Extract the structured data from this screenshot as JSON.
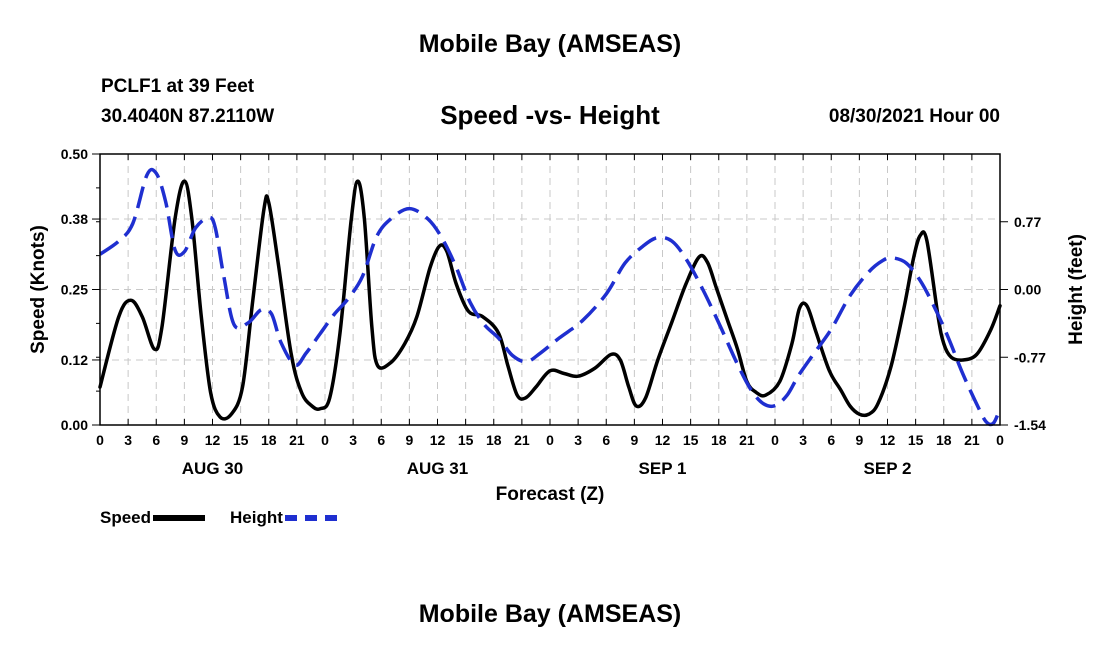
{
  "header": {
    "title": "Mobile Bay (AMSEAS)",
    "station": "PCLF1 at 39 Feet",
    "coords": "30.4040N  87.2110W",
    "subtitle": "Speed -vs- Height",
    "timestamp": "08/30/2021 Hour 00"
  },
  "footer": {
    "title": "Mobile Bay (AMSEAS)"
  },
  "colors": {
    "speed": "#000000",
    "height": "#1f2fd0",
    "grid": "#c8c8c8"
  },
  "chart_data": {
    "type": "line",
    "xlabel": "Forecast (Z)",
    "ylabel_left": "Speed (Knots)",
    "ylabel_right": "Height (feet)",
    "x_range_hours": [
      0,
      96
    ],
    "x_tick_step_hours": 3,
    "x_tick_labels": [
      "0",
      "3",
      "6",
      "9",
      "12",
      "15",
      "18",
      "21",
      "0",
      "3",
      "6",
      "9",
      "12",
      "15",
      "18",
      "21",
      "0",
      "3",
      "6",
      "9",
      "12",
      "15",
      "18",
      "21",
      "0",
      "3",
      "6",
      "9",
      "12",
      "15",
      "18",
      "21",
      "0"
    ],
    "day_labels": [
      {
        "label": "AUG 30",
        "hour": 12
      },
      {
        "label": "AUG 31",
        "hour": 36
      },
      {
        "label": "SEP 1",
        "hour": 60
      },
      {
        "label": "SEP 2",
        "hour": 84
      }
    ],
    "y_left": {
      "range": [
        0,
        0.5
      ],
      "ticks": [
        0.0,
        0.12,
        0.25,
        0.38,
        0.5
      ],
      "tick_labels": [
        "0.00",
        "0.12",
        "0.25",
        "0.38",
        "0.50"
      ]
    },
    "y_right": {
      "range": [
        -1.54,
        1.54
      ],
      "ticks": [
        -1.54,
        -0.77,
        0.0,
        0.77
      ],
      "tick_labels": [
        "-1.54",
        "-0.77",
        "0.00",
        "0.77"
      ]
    },
    "grid": true,
    "legend": "bottom-left",
    "series": [
      {
        "name": "Speed",
        "axis": "left",
        "style": "solid",
        "points": [
          [
            0,
            0.07
          ],
          [
            2,
            0.2
          ],
          [
            3.3,
            0.23
          ],
          [
            4.5,
            0.2
          ],
          [
            5.8,
            0.14
          ],
          [
            6.6,
            0.18
          ],
          [
            8,
            0.38
          ],
          [
            9,
            0.45
          ],
          [
            9.8,
            0.38
          ],
          [
            10.8,
            0.2
          ],
          [
            11.8,
            0.06
          ],
          [
            12.8,
            0.015
          ],
          [
            14,
            0.02
          ],
          [
            15.2,
            0.07
          ],
          [
            16.3,
            0.23
          ],
          [
            17.5,
            0.4
          ],
          [
            18,
            0.41
          ],
          [
            19,
            0.3
          ],
          [
            20.4,
            0.13
          ],
          [
            21.5,
            0.06
          ],
          [
            22.6,
            0.035
          ],
          [
            23.5,
            0.03
          ],
          [
            24.5,
            0.05
          ],
          [
            25.6,
            0.17
          ],
          [
            26.8,
            0.38
          ],
          [
            27.5,
            0.45
          ],
          [
            28.2,
            0.38
          ],
          [
            29,
            0.18
          ],
          [
            29.6,
            0.11
          ],
          [
            31,
            0.115
          ],
          [
            32.5,
            0.15
          ],
          [
            33.8,
            0.2
          ],
          [
            35.2,
            0.29
          ],
          [
            36.2,
            0.33
          ],
          [
            37,
            0.32
          ],
          [
            38,
            0.26
          ],
          [
            39.3,
            0.21
          ],
          [
            40.8,
            0.2
          ],
          [
            42.5,
            0.17
          ],
          [
            43.5,
            0.11
          ],
          [
            44.5,
            0.055
          ],
          [
            45.4,
            0.05
          ],
          [
            46.5,
            0.07
          ],
          [
            48,
            0.1
          ],
          [
            49.5,
            0.095
          ],
          [
            51,
            0.09
          ],
          [
            52.8,
            0.105
          ],
          [
            54.5,
            0.13
          ],
          [
            55.5,
            0.12
          ],
          [
            56.4,
            0.07
          ],
          [
            57.2,
            0.035
          ],
          [
            58.2,
            0.05
          ],
          [
            59.5,
            0.12
          ],
          [
            61,
            0.19
          ],
          [
            62.5,
            0.26
          ],
          [
            63.9,
            0.31
          ],
          [
            64.8,
            0.3
          ],
          [
            65.8,
            0.25
          ],
          [
            67,
            0.19
          ],
          [
            68,
            0.14
          ],
          [
            69,
            0.08
          ],
          [
            70,
            0.06
          ],
          [
            71,
            0.055
          ],
          [
            72.5,
            0.08
          ],
          [
            73.8,
            0.15
          ],
          [
            74.6,
            0.215
          ],
          [
            75.4,
            0.22
          ],
          [
            76.4,
            0.17
          ],
          [
            77.8,
            0.1
          ],
          [
            79,
            0.065
          ],
          [
            80,
            0.035
          ],
          [
            81,
            0.02
          ],
          [
            82,
            0.02
          ],
          [
            83,
            0.04
          ],
          [
            84.4,
            0.11
          ],
          [
            85.8,
            0.22
          ],
          [
            86.8,
            0.31
          ],
          [
            87.5,
            0.35
          ],
          [
            88.2,
            0.34
          ],
          [
            89.4,
            0.2
          ],
          [
            90,
            0.15
          ],
          [
            90.8,
            0.125
          ],
          [
            92,
            0.12
          ],
          [
            93.5,
            0.13
          ],
          [
            95,
            0.175
          ],
          [
            96,
            0.22
          ]
        ]
      },
      {
        "name": "Height",
        "axis": "right",
        "style": "dashed",
        "points": [
          [
            0,
            0.4
          ],
          [
            2,
            0.55
          ],
          [
            3.5,
            0.75
          ],
          [
            5,
            1.3
          ],
          [
            6,
            1.32
          ],
          [
            7,
            1.0
          ],
          [
            8,
            0.45
          ],
          [
            9,
            0.43
          ],
          [
            10.2,
            0.7
          ],
          [
            11.6,
            0.82
          ],
          [
            12.3,
            0.7
          ],
          [
            13.2,
            0.15
          ],
          [
            14.3,
            -0.4
          ],
          [
            15.8,
            -0.38
          ],
          [
            17.2,
            -0.23
          ],
          [
            18.3,
            -0.28
          ],
          [
            19.3,
            -0.6
          ],
          [
            20.8,
            -0.86
          ],
          [
            22,
            -0.72
          ],
          [
            23.5,
            -0.5
          ],
          [
            25,
            -0.28
          ],
          [
            26.5,
            -0.1
          ],
          [
            28,
            0.15
          ],
          [
            29.5,
            0.6
          ],
          [
            31,
            0.8
          ],
          [
            33,
            0.92
          ],
          [
            35,
            0.8
          ],
          [
            36.5,
            0.58
          ],
          [
            38,
            0.25
          ],
          [
            39.5,
            -0.15
          ],
          [
            41,
            -0.4
          ],
          [
            42.5,
            -0.55
          ],
          [
            44,
            -0.75
          ],
          [
            45.5,
            -0.82
          ],
          [
            47,
            -0.72
          ],
          [
            49,
            -0.55
          ],
          [
            51.5,
            -0.35
          ],
          [
            54,
            -0.05
          ],
          [
            56,
            0.3
          ],
          [
            58,
            0.5
          ],
          [
            59.5,
            0.59
          ],
          [
            61,
            0.55
          ],
          [
            62.5,
            0.35
          ],
          [
            64.3,
            0.0
          ],
          [
            66.3,
            -0.45
          ],
          [
            68,
            -0.85
          ],
          [
            69.5,
            -1.15
          ],
          [
            70.8,
            -1.3
          ],
          [
            72,
            -1.32
          ],
          [
            73.3,
            -1.2
          ],
          [
            74.5,
            -0.98
          ],
          [
            76,
            -0.75
          ],
          [
            78,
            -0.45
          ],
          [
            80,
            -0.07
          ],
          [
            82,
            0.2
          ],
          [
            83.5,
            0.33
          ],
          [
            84.5,
            0.36
          ],
          [
            86,
            0.3
          ],
          [
            87.5,
            0.1
          ],
          [
            89,
            -0.2
          ],
          [
            90.5,
            -0.55
          ],
          [
            92,
            -0.95
          ],
          [
            93.5,
            -1.3
          ],
          [
            94.5,
            -1.5
          ],
          [
            95.3,
            -1.52
          ],
          [
            96,
            -1.35
          ]
        ]
      }
    ]
  },
  "legend": {
    "speed_label": "Speed",
    "height_label": "Height"
  }
}
